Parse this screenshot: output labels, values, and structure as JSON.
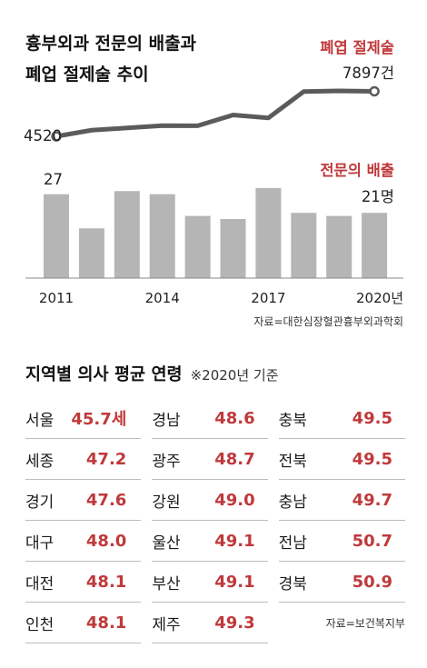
{
  "title": {
    "line1": "흉부외과 전문의 배출과",
    "line2": "폐업 절제술 추이"
  },
  "chart_data": {
    "type": "line+bar",
    "years": [
      2011,
      2012,
      2013,
      2014,
      2015,
      2016,
      2017,
      2018,
      2019,
      2020
    ],
    "x_tick_labels": [
      "2011",
      "2014",
      "2017",
      "2020년"
    ],
    "series": [
      {
        "name": "폐엽 절제술",
        "type": "line",
        "values": [
          4520,
          4980,
          5150,
          5320,
          5310,
          6120,
          5900,
          7880,
          7930,
          7897
        ],
        "start_label": "4520",
        "end_label": "7897건"
      },
      {
        "name": "전문의 배출",
        "type": "bar",
        "values": [
          27,
          16,
          28,
          27,
          20,
          19,
          29,
          21,
          20,
          21
        ],
        "start_label": "27",
        "end_label": "21명"
      }
    ],
    "colors": {
      "line": "#5b5b5b",
      "bar": "#b5b5b5",
      "accent": "#c0393b"
    }
  },
  "source1": "자료=대한심장혈관흉부외과학회",
  "section2": {
    "title": "지역별 의사 평균 연령",
    "subtitle": "※2020년 기준",
    "items": [
      {
        "region": "서울",
        "age": "45.7세"
      },
      {
        "region": "경남",
        "age": "48.6"
      },
      {
        "region": "충북",
        "age": "49.5"
      },
      {
        "region": "세종",
        "age": "47.2"
      },
      {
        "region": "광주",
        "age": "48.7"
      },
      {
        "region": "전북",
        "age": "49.5"
      },
      {
        "region": "경기",
        "age": "47.6"
      },
      {
        "region": "강원",
        "age": "49.0"
      },
      {
        "region": "충남",
        "age": "49.7"
      },
      {
        "region": "대구",
        "age": "48.0"
      },
      {
        "region": "울산",
        "age": "49.1"
      },
      {
        "region": "전남",
        "age": "50.7"
      },
      {
        "region": "대전",
        "age": "48.1"
      },
      {
        "region": "부산",
        "age": "49.1"
      },
      {
        "region": "경북",
        "age": "50.9"
      },
      {
        "region": "인천",
        "age": "48.1"
      },
      {
        "region": "제주",
        "age": "49.3"
      }
    ],
    "source": "자료=보건복지부"
  }
}
